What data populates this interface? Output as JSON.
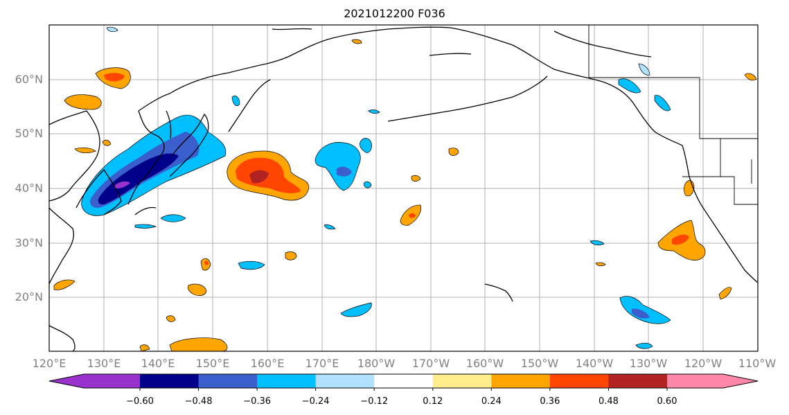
{
  "title": "2021012200 F036",
  "colors": {
    "land_line": "#000000",
    "grid": "#b0b0b0",
    "tick_label": "#808080"
  },
  "lat_labels": [
    "60°N",
    "50°N",
    "40°N",
    "30°N",
    "20°N"
  ],
  "lon_labels": [
    "120°E",
    "130°E",
    "140°E",
    "150°E",
    "160°E",
    "170°E",
    "180°W",
    "170°W",
    "160°W",
    "150°W",
    "140°W",
    "130°W",
    "120°W",
    "110°W"
  ],
  "colorbar": {
    "colors": [
      "#9932cc",
      "#00008b",
      "#3a5fcd",
      "#00bfff",
      "#b0e2ff",
      "#ffffff",
      "#ffec8b",
      "#ffa500",
      "#ff4500",
      "#b22222",
      "#ff88aa"
    ],
    "tick_labels": [
      "−0.60",
      "−0.48",
      "−0.36",
      "−0.24",
      "−0.12",
      "0.12",
      "0.24",
      "0.36",
      "0.48",
      "0.60"
    ]
  }
}
